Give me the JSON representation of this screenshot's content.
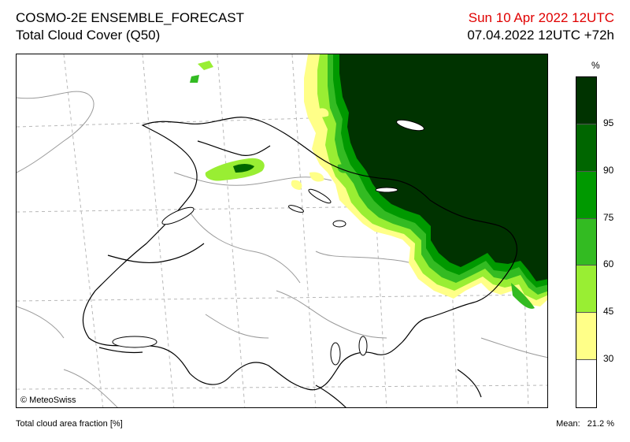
{
  "header": {
    "model": "COSMO-2E ENSEMBLE_FORECAST",
    "parameter": "Total Cloud Cover (Q50)",
    "valid_time": "Sun 10 Apr 2022 12UTC",
    "run_time": "07.04.2022 12UTC +72h"
  },
  "map": {
    "credit": "© MeteoSwiss",
    "cloud_region": "dense cloud cover over eastern and north-eastern Switzerland, clear elsewhere"
  },
  "legend": {
    "unit": "%",
    "labels": [
      "95",
      "90",
      "75",
      "60",
      "45",
      "30"
    ],
    "colors": [
      "#003300",
      "#006600",
      "#009900",
      "#33bb22",
      "#99ee33",
      "#ffff88",
      "#ffffff"
    ]
  },
  "footer": {
    "description": "Total cloud area fraction [%]",
    "mean_label": "Mean:",
    "mean_value": "21.2 %"
  }
}
